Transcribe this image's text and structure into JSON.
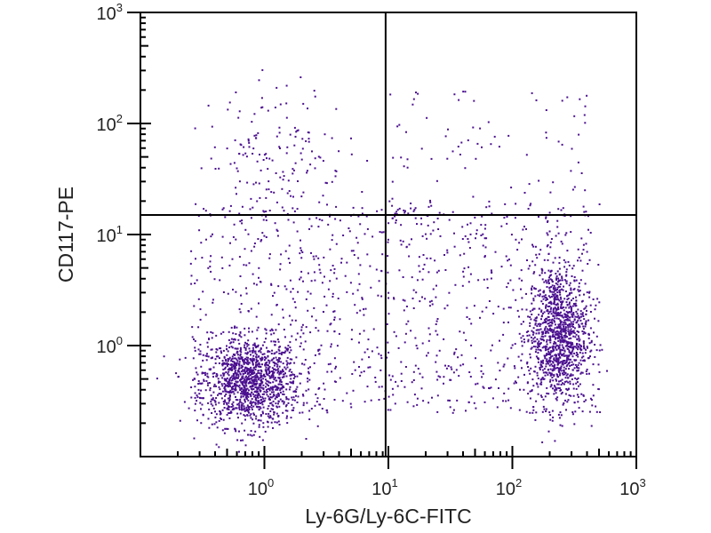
{
  "chart_data": {
    "type": "scatter",
    "title": "",
    "xlabel": "Ly-6G/Ly-6C-FITC",
    "ylabel": "CD117-PE",
    "xscale": "log",
    "yscale": "log",
    "xlim": [
      0.1,
      1000
    ],
    "ylim": [
      0.1,
      1000
    ],
    "x_ticks": [
      {
        "base": "10",
        "exp": "0",
        "value": 1
      },
      {
        "base": "10",
        "exp": "1",
        "value": 10
      },
      {
        "base": "10",
        "exp": "2",
        "value": 100
      },
      {
        "base": "10",
        "exp": "3",
        "value": 1000
      }
    ],
    "y_ticks": [
      {
        "base": "10",
        "exp": "0",
        "value": 1
      },
      {
        "base": "10",
        "exp": "1",
        "value": 10
      },
      {
        "base": "10",
        "exp": "2",
        "value": 100
      },
      {
        "base": "10",
        "exp": "3",
        "value": 1000
      }
    ],
    "quadrant_gates": {
      "x": 9.5,
      "y": 15
    },
    "grid": false,
    "point_color": "#4b1090",
    "populations": [
      {
        "name": "Ly-6G/Ly-6C- CD117- (lower-left)",
        "log10_center": [
          -0.12,
          -0.32
        ],
        "log10_sd": [
          0.2,
          0.2
        ],
        "count": 1250
      },
      {
        "name": "Ly-6G/Ly-6C+ CD117- (lower-right)",
        "log10_center": [
          2.36,
          0.1
        ],
        "log10_sd": [
          0.12,
          0.32
        ],
        "count": 1150
      },
      {
        "name": "CD117+ (upper-left)",
        "log10_center": [
          0.1,
          1.75
        ],
        "log10_sd": [
          0.28,
          0.3
        ],
        "count": 160
      },
      {
        "name": "diffuse lower",
        "log10_uniform_x": [
          -0.6,
          2.7
        ],
        "log10_uniform_y": [
          -0.6,
          1.3
        ],
        "count": 950
      },
      {
        "name": "diffuse upper-right",
        "log10_uniform_x": [
          1.0,
          2.6
        ],
        "log10_uniform_y": [
          1.15,
          2.3
        ],
        "count": 90
      }
    ]
  }
}
